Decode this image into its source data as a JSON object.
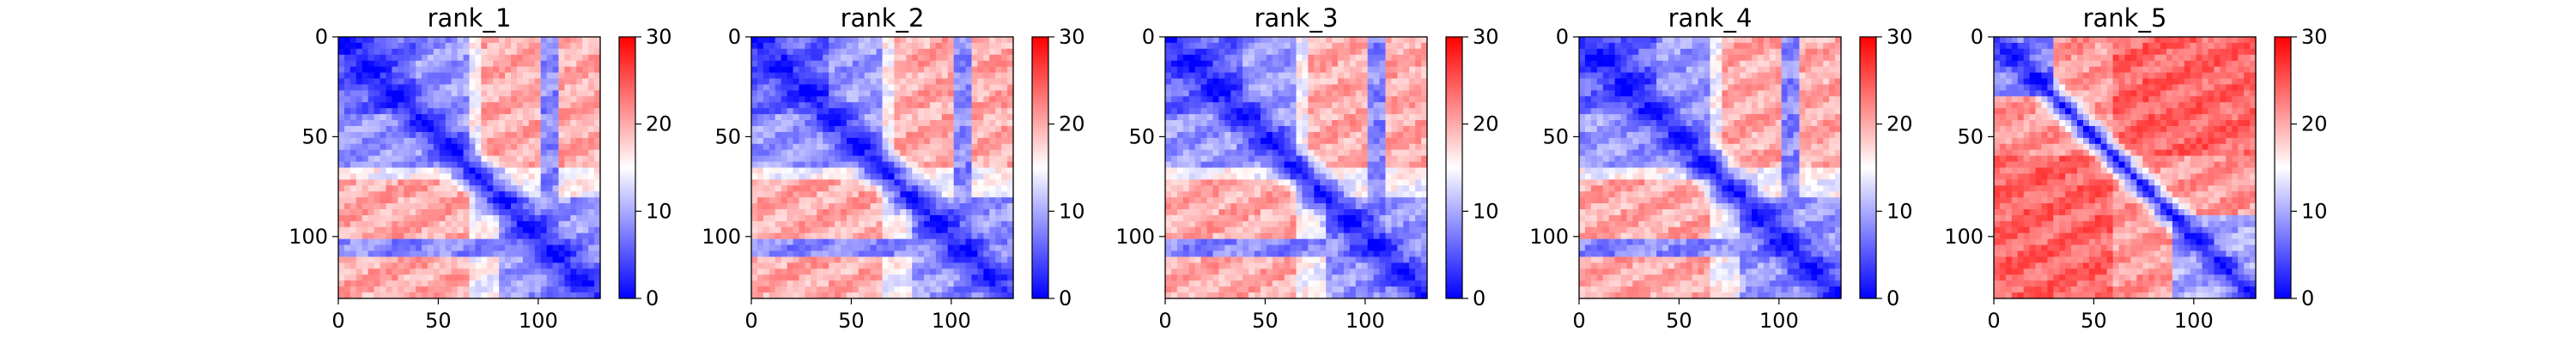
{
  "chart_data": [
    {
      "type": "heatmap",
      "title": "rank_1",
      "xlim": [
        0,
        131
      ],
      "ylim": [
        131,
        0
      ],
      "x_ticks": [
        0,
        50,
        100
      ],
      "y_ticks": [
        0,
        50,
        100
      ],
      "colorbar": {
        "min": 0,
        "max": 30,
        "ticks": [
          0,
          10,
          20,
          30
        ],
        "colors": [
          "#0000ff",
          "#ffffff",
          "#ff0000"
        ]
      },
      "pattern": {
        "diagonal_band": 0.14,
        "blocks": [
          {
            "x": [
              0,
              65
            ],
            "y": [
              0,
              65
            ],
            "v": 9
          },
          {
            "x": [
              0,
              40
            ],
            "y": [
              0,
              40
            ],
            "v": 6
          },
          {
            "x": [
              70,
              131
            ],
            "y": [
              0,
              65
            ],
            "v": 20
          },
          {
            "x": [
              0,
              65
            ],
            "y": [
              70,
              131
            ],
            "v": 20
          },
          {
            "x": [
              80,
              131
            ],
            "y": [
              80,
              131
            ],
            "v": 9
          },
          {
            "x": [
              0,
              131
            ],
            "y": [
              100,
              110
            ],
            "v": 8
          },
          {
            "x": [
              100,
              110
            ],
            "y": [
              0,
              131
            ],
            "v": 8
          }
        ],
        "background": 15
      }
    },
    {
      "type": "heatmap",
      "title": "rank_2",
      "xlim": [
        0,
        131
      ],
      "ylim": [
        131,
        0
      ],
      "x_ticks": [
        0,
        50,
        100
      ],
      "y_ticks": [
        0,
        50,
        100
      ],
      "colorbar": {
        "min": 0,
        "max": 30,
        "ticks": [
          0,
          10,
          20,
          30
        ],
        "colors": [
          "#0000ff",
          "#ffffff",
          "#ff0000"
        ]
      },
      "pattern": {
        "diagonal_band": 0.14,
        "blocks": [
          {
            "x": [
              0,
              65
            ],
            "y": [
              0,
              65
            ],
            "v": 9
          },
          {
            "x": [
              0,
              40
            ],
            "y": [
              0,
              40
            ],
            "v": 6
          },
          {
            "x": [
              70,
              131
            ],
            "y": [
              0,
              65
            ],
            "v": 20
          },
          {
            "x": [
              0,
              65
            ],
            "y": [
              70,
              131
            ],
            "v": 20
          },
          {
            "x": [
              80,
              131
            ],
            "y": [
              80,
              131
            ],
            "v": 9
          },
          {
            "x": [
              0,
              131
            ],
            "y": [
              100,
              110
            ],
            "v": 8
          },
          {
            "x": [
              100,
              110
            ],
            "y": [
              0,
              131
            ],
            "v": 8
          }
        ],
        "background": 15
      }
    },
    {
      "type": "heatmap",
      "title": "rank_3",
      "xlim": [
        0,
        131
      ],
      "ylim": [
        131,
        0
      ],
      "x_ticks": [
        0,
        50,
        100
      ],
      "y_ticks": [
        0,
        50,
        100
      ],
      "colorbar": {
        "min": 0,
        "max": 30,
        "ticks": [
          0,
          10,
          20,
          30
        ],
        "colors": [
          "#0000ff",
          "#ffffff",
          "#ff0000"
        ]
      },
      "pattern": {
        "diagonal_band": 0.14,
        "blocks": [
          {
            "x": [
              0,
              65
            ],
            "y": [
              0,
              65
            ],
            "v": 9
          },
          {
            "x": [
              0,
              40
            ],
            "y": [
              0,
              40
            ],
            "v": 6
          },
          {
            "x": [
              70,
              131
            ],
            "y": [
              0,
              65
            ],
            "v": 20
          },
          {
            "x": [
              0,
              65
            ],
            "y": [
              70,
              131
            ],
            "v": 20
          },
          {
            "x": [
              80,
              131
            ],
            "y": [
              80,
              131
            ],
            "v": 9
          },
          {
            "x": [
              0,
              131
            ],
            "y": [
              100,
              110
            ],
            "v": 8
          },
          {
            "x": [
              100,
              110
            ],
            "y": [
              0,
              131
            ],
            "v": 8
          }
        ],
        "background": 15
      }
    },
    {
      "type": "heatmap",
      "title": "rank_4",
      "xlim": [
        0,
        131
      ],
      "ylim": [
        131,
        0
      ],
      "x_ticks": [
        0,
        50,
        100
      ],
      "y_ticks": [
        0,
        50,
        100
      ],
      "colorbar": {
        "min": 0,
        "max": 30,
        "ticks": [
          0,
          10,
          20,
          30
        ],
        "colors": [
          "#0000ff",
          "#ffffff",
          "#ff0000"
        ]
      },
      "pattern": {
        "diagonal_band": 0.14,
        "blocks": [
          {
            "x": [
              0,
              65
            ],
            "y": [
              0,
              65
            ],
            "v": 9
          },
          {
            "x": [
              0,
              40
            ],
            "y": [
              0,
              40
            ],
            "v": 6
          },
          {
            "x": [
              70,
              131
            ],
            "y": [
              0,
              65
            ],
            "v": 20
          },
          {
            "x": [
              0,
              65
            ],
            "y": [
              70,
              131
            ],
            "v": 20
          },
          {
            "x": [
              80,
              131
            ],
            "y": [
              80,
              131
            ],
            "v": 9
          },
          {
            "x": [
              0,
              131
            ],
            "y": [
              100,
              110
            ],
            "v": 8
          },
          {
            "x": [
              100,
              110
            ],
            "y": [
              0,
              131
            ],
            "v": 8
          }
        ],
        "background": 15
      }
    },
    {
      "type": "heatmap",
      "title": "rank_5",
      "xlim": [
        0,
        131
      ],
      "ylim": [
        131,
        0
      ],
      "x_ticks": [
        0,
        50,
        100
      ],
      "y_ticks": [
        0,
        50,
        100
      ],
      "colorbar": {
        "min": 0,
        "max": 30,
        "ticks": [
          0,
          10,
          20,
          30
        ],
        "colors": [
          "#0000ff",
          "#ffffff",
          "#ff0000"
        ]
      },
      "pattern": {
        "diagonal_band": 0.1,
        "blocks": [
          {
            "x": [
              0,
              30
            ],
            "y": [
              0,
              30
            ],
            "v": 8
          },
          {
            "x": [
              0,
              60
            ],
            "y": [
              60,
              131
            ],
            "v": 24
          },
          {
            "x": [
              60,
              131
            ],
            "y": [
              0,
              60
            ],
            "v": 24
          },
          {
            "x": [
              90,
              131
            ],
            "y": [
              90,
              131
            ],
            "v": 10
          }
        ],
        "background": 21
      }
    }
  ]
}
